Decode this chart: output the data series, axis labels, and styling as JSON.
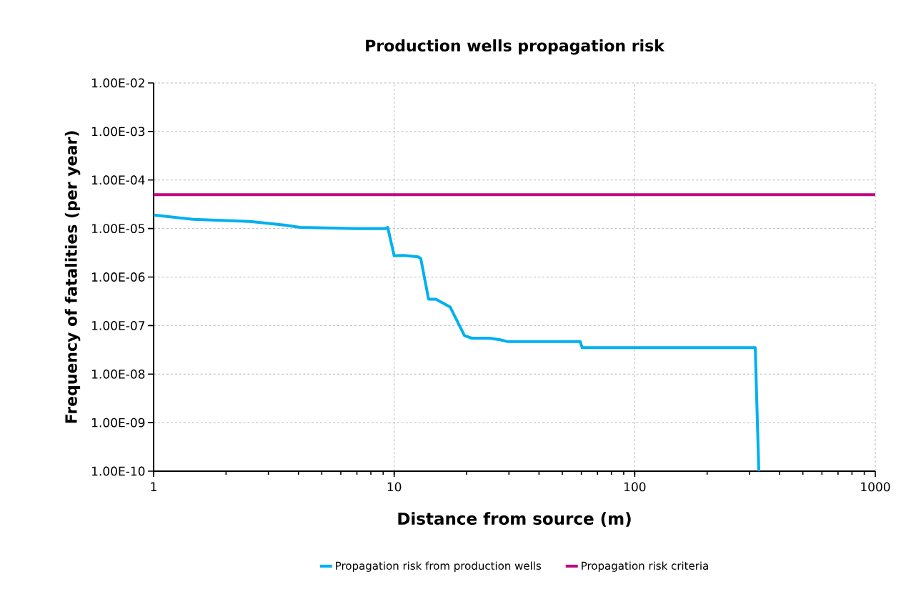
{
  "chart_data": {
    "type": "line",
    "title": "Production wells propagation risk",
    "xlabel": "Distance from source (m)",
    "ylabel": "Frequency of fatalities (per year)",
    "log": "xy",
    "xlim": [
      1,
      1000
    ],
    "ylim": [
      1e-10,
      0.01
    ],
    "xticks": [
      1,
      10,
      100,
      1000
    ],
    "yticks": [
      {
        "value": 1e-10,
        "label": "1.00E-10"
      },
      {
        "value": 1e-09,
        "label": "1.00E-09"
      },
      {
        "value": 1e-08,
        "label": "1.00E-08"
      },
      {
        "value": 1e-07,
        "label": "1.00E-07"
      },
      {
        "value": 1e-06,
        "label": "1.00E-06"
      },
      {
        "value": 1e-05,
        "label": "1.00E-05"
      },
      {
        "value": 0.0001,
        "label": "1.00E-04"
      },
      {
        "value": 0.001,
        "label": "1.00E-03"
      },
      {
        "value": 0.01,
        "label": "1.00E-02"
      }
    ],
    "grid": true,
    "legend": "bottom",
    "marker": "none",
    "line_style": "solid",
    "series": [
      {
        "name": "Propagation risk from production wells",
        "color": "#00b0f0",
        "x": [
          1,
          1.46,
          2.52,
          3.54,
          4.06,
          7.0,
          9.2,
          9.4,
          9.8,
          10.0,
          10.96,
          12.6,
          12.9,
          13.9,
          14.9,
          17.1,
          19.6,
          21.0,
          24.9,
          27.6,
          29.5,
          59.3,
          60.5,
          317,
          328
        ],
        "values": [
          1.9e-05,
          1.55e-05,
          1.4e-05,
          1.17e-05,
          1.06e-05,
          1e-05,
          1e-05,
          1.05e-05,
          4.3e-06,
          2.75e-06,
          2.8e-06,
          2.6e-06,
          2.4e-06,
          3.5e-07,
          3.5e-07,
          2.4e-07,
          6.2e-08,
          5.5e-08,
          5.5e-08,
          5.1e-08,
          4.7e-08,
          4.7e-08,
          3.5e-08,
          3.5e-08,
          1e-10
        ]
      }
    ],
    "ref_lines": [
      {
        "axis": "y",
        "value": 5e-05,
        "label": "Propagation risk criteria",
        "color": "#c0097e"
      }
    ]
  }
}
